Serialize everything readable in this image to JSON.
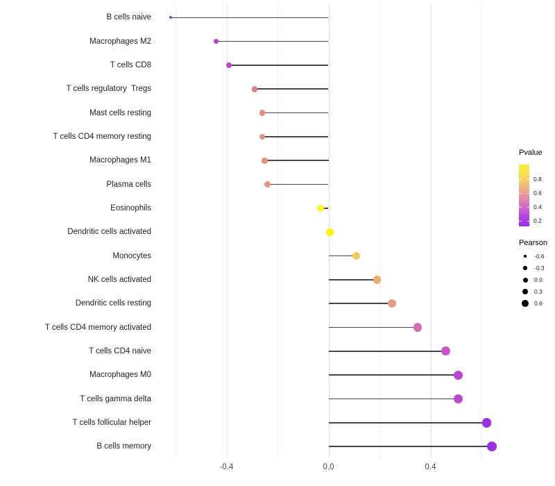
{
  "chart_data": {
    "type": "scatter",
    "variant": "lollipop",
    "title": "",
    "xlabel": "",
    "ylabel": "",
    "xlim": [
      -0.69,
      0.7
    ],
    "grid": true,
    "x_ticks": [
      {
        "value": -0.4,
        "label": "-0.4"
      },
      {
        "value": 0.0,
        "label": "0.0"
      },
      {
        "value": 0.4,
        "label": "0.4"
      }
    ],
    "x_major_gridlines": [
      -0.4,
      0.0,
      0.4
    ],
    "x_minor_gridlines": [
      -0.6,
      -0.2,
      0.2,
      0.6
    ],
    "points": [
      {
        "label": "B cells naive",
        "pearson": -0.62,
        "pvalue": 0.25,
        "color": "#9b33db",
        "size": 4
      },
      {
        "label": "Macrophages M2",
        "pearson": -0.44,
        "pvalue": 0.32,
        "color": "#b843c9",
        "size": 7
      },
      {
        "label": "T cells CD8",
        "pearson": -0.39,
        "pvalue": 0.33,
        "color": "#c04bc8",
        "size": 7.5
      },
      {
        "label": "T cells regulatory  Tregs",
        "pearson": -0.29,
        "pvalue": 0.55,
        "color": "#dd8088",
        "size": 8.5
      },
      {
        "label": "Mast cells resting",
        "pearson": -0.26,
        "pvalue": 0.6,
        "color": "#e68c7c",
        "size": 8.5
      },
      {
        "label": "T cells CD4 memory resting",
        "pearson": -0.26,
        "pvalue": 0.6,
        "color": "#e68e7d",
        "size": 8.5
      },
      {
        "label": "Macrophages M1",
        "pearson": -0.25,
        "pvalue": 0.6,
        "color": "#e6907e",
        "size": 8.5
      },
      {
        "label": "Plasma cells",
        "pearson": -0.24,
        "pvalue": 0.62,
        "color": "#e9967b",
        "size": 9
      },
      {
        "label": "Eosinophils",
        "pearson": -0.03,
        "pvalue": 0.95,
        "color": "#f8f32b",
        "size": 10
      },
      {
        "label": "Dendritic cells activated",
        "pearson": 0.005,
        "pvalue": 0.97,
        "color": "#faf500",
        "size": 10.5
      },
      {
        "label": "Monocytes",
        "pearson": 0.11,
        "pvalue": 0.82,
        "color": "#efca5d",
        "size": 11
      },
      {
        "label": "NK cells activated",
        "pearson": 0.19,
        "pvalue": 0.72,
        "color": "#edad68",
        "size": 11.5
      },
      {
        "label": "Dendritic cells resting",
        "pearson": 0.25,
        "pvalue": 0.63,
        "color": "#e89b7e",
        "size": 12
      },
      {
        "label": "T cells CD4 memory activated",
        "pearson": 0.35,
        "pvalue": 0.45,
        "color": "#d36fb4",
        "size": 12.5
      },
      {
        "label": "T cells CD4 naive",
        "pearson": 0.46,
        "pvalue": 0.4,
        "color": "#c757c7",
        "size": 13
      },
      {
        "label": "Macrophages M0",
        "pearson": 0.51,
        "pvalue": 0.35,
        "color": "#bb45d3",
        "size": 13
      },
      {
        "label": "T cells gamma delta",
        "pearson": 0.51,
        "pvalue": 0.35,
        "color": "#bc47d3",
        "size": 13
      },
      {
        "label": "T cells follicular helper",
        "pearson": 0.62,
        "pvalue": 0.2,
        "color": "#9c2fe3",
        "size": 13.5
      },
      {
        "label": "B cells memory",
        "pearson": 0.64,
        "pvalue": 0.2,
        "color": "#9930e8",
        "size": 14
      }
    ]
  },
  "legend_pvalue": {
    "title": "Pvalue",
    "tick_labels": [
      "0.8",
      "0.6",
      "0.4",
      "0.2"
    ],
    "gradient": [
      "#f9ef3a",
      "#f8e14e",
      "#f3c76d",
      "#eda68d",
      "#e285ae",
      "#cf66ce",
      "#b240e5",
      "#9a2cf2"
    ]
  },
  "legend_pearson": {
    "title": "Pearson",
    "entries": [
      {
        "label": "-0.6",
        "size": 3.5
      },
      {
        "label": "-0.3",
        "size": 5.5
      },
      {
        "label": "0.0",
        "size": 7
      },
      {
        "label": "0.3",
        "size": 8.5
      },
      {
        "label": "0.6",
        "size": 9.5
      }
    ]
  },
  "colors": {
    "stem": "#454545",
    "grid_major": "#e2e2e2",
    "grid_minor": "#efefef",
    "axis_text": "#4a4a4a",
    "label_text": "#1f1f1f"
  }
}
